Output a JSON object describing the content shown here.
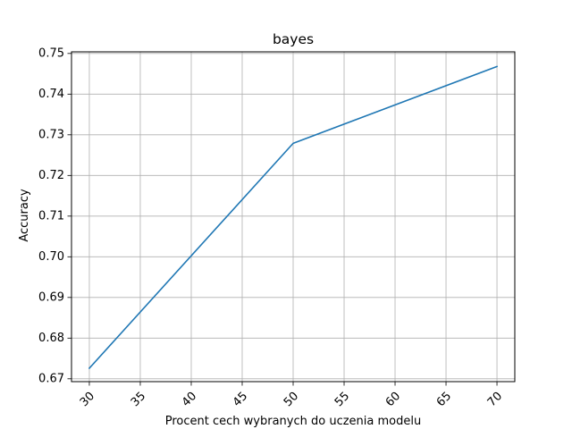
{
  "chart_data": {
    "type": "line",
    "title": "bayes",
    "xlabel": "Procent cech wybranych do uczenia modelu",
    "ylabel": "Accuracy",
    "x_ticks": [
      "30",
      "35",
      "40",
      "45",
      "50",
      "55",
      "60",
      "65",
      "70"
    ],
    "y_ticks": [
      "0.67",
      "0.68",
      "0.69",
      "0.70",
      "0.71",
      "0.72",
      "0.73",
      "0.74",
      "0.75"
    ],
    "xlim": [
      28.25,
      71.75
    ],
    "ylim": [
      0.6693,
      0.7504
    ],
    "grid": true,
    "series": [
      {
        "color": "#1f77b4",
        "x": [
          30,
          50,
          70
        ],
        "y": [
          0.6726,
          0.7279,
          0.7468
        ]
      }
    ]
  }
}
